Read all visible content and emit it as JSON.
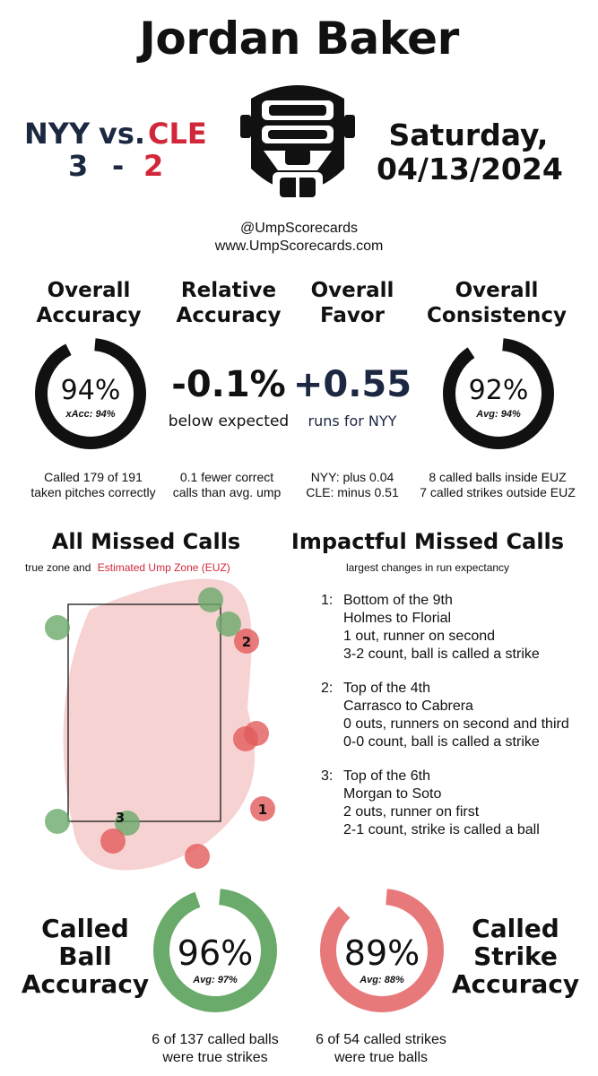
{
  "umpire_name": "Jordan Baker",
  "away": {
    "abbr": "NYY",
    "score": "3",
    "color": "#1c2841"
  },
  "vs_label": "vs.",
  "score_dash": "-",
  "home": {
    "abbr": "CLE",
    "score": "2",
    "color": "#d0283a"
  },
  "date": {
    "weekday": "Saturday,",
    "date": "04/13/2024"
  },
  "social": {
    "handle": "@UmpScorecards",
    "site": "www.UmpScorecards.com"
  },
  "stats": {
    "overall_accuracy": {
      "heading1": "Overall",
      "heading2": "Accuracy",
      "value": "94%",
      "sub": "xAcc: 94%",
      "fraction": 0.94,
      "note1": "Called 179 of 191",
      "note2": "taken pitches correctly"
    },
    "relative_accuracy": {
      "heading1": "Relative",
      "heading2": "Accuracy",
      "value": "-0.1%",
      "caption": "below expected",
      "note1": "0.1 fewer correct",
      "note2": "calls than avg. ump"
    },
    "overall_favor": {
      "heading1": "Overall",
      "heading2": "Favor",
      "value": "+0.55",
      "caption": "runs for NYY",
      "note1": "NYY: plus 0.04",
      "note2": "CLE: minus 0.51"
    },
    "overall_consistency": {
      "heading1": "Overall",
      "heading2": "Consistency",
      "value": "92%",
      "sub": "Avg: 94%",
      "fraction": 0.92,
      "note1": "8 called balls inside EUZ",
      "note2": "7 called strikes outside EUZ"
    }
  },
  "missed": {
    "title": "All Missed Calls",
    "legend_prefix": "true zone and",
    "legend_euz": "Estimated Ump Zone (EUZ)",
    "labels": [
      "1",
      "2",
      "3"
    ]
  },
  "impactful": {
    "title": "Impactful Missed Calls",
    "subtitle": "largest changes in run expectancy",
    "calls": [
      {
        "num": "1:",
        "inning": "Bottom of the 9th",
        "matchup": "Holmes to Florial",
        "situation": "1 out, runner on second",
        "result": "3-2 count, ball is called a strike"
      },
      {
        "num": "2:",
        "inning": "Top of the 4th",
        "matchup": "Carrasco to Cabrera",
        "situation": "0 outs, runners on second and third",
        "result": "0-0 count, ball is called a strike"
      },
      {
        "num": "3:",
        "inning": "Top of the 6th",
        "matchup": "Morgan to Soto",
        "situation": "2 outs, runner on first",
        "result": "2-1 count, strike is called a ball"
      }
    ]
  },
  "called_ball": {
    "h1": "Called",
    "h2": "Ball",
    "h3": "Accuracy",
    "value": "96%",
    "sub": "Avg: 97%",
    "fraction": 0.96,
    "color": "#6aaa6a",
    "note1": "6 of 137 called balls",
    "note2": "were true strikes"
  },
  "called_strike": {
    "h1": "Called",
    "h2": "Strike",
    "h3": "Accuracy",
    "value": "89%",
    "sub": "Avg: 88%",
    "fraction": 0.89,
    "color": "#e8797b",
    "note1": "6 of 54 called strikes",
    "note2": "were true balls"
  }
}
